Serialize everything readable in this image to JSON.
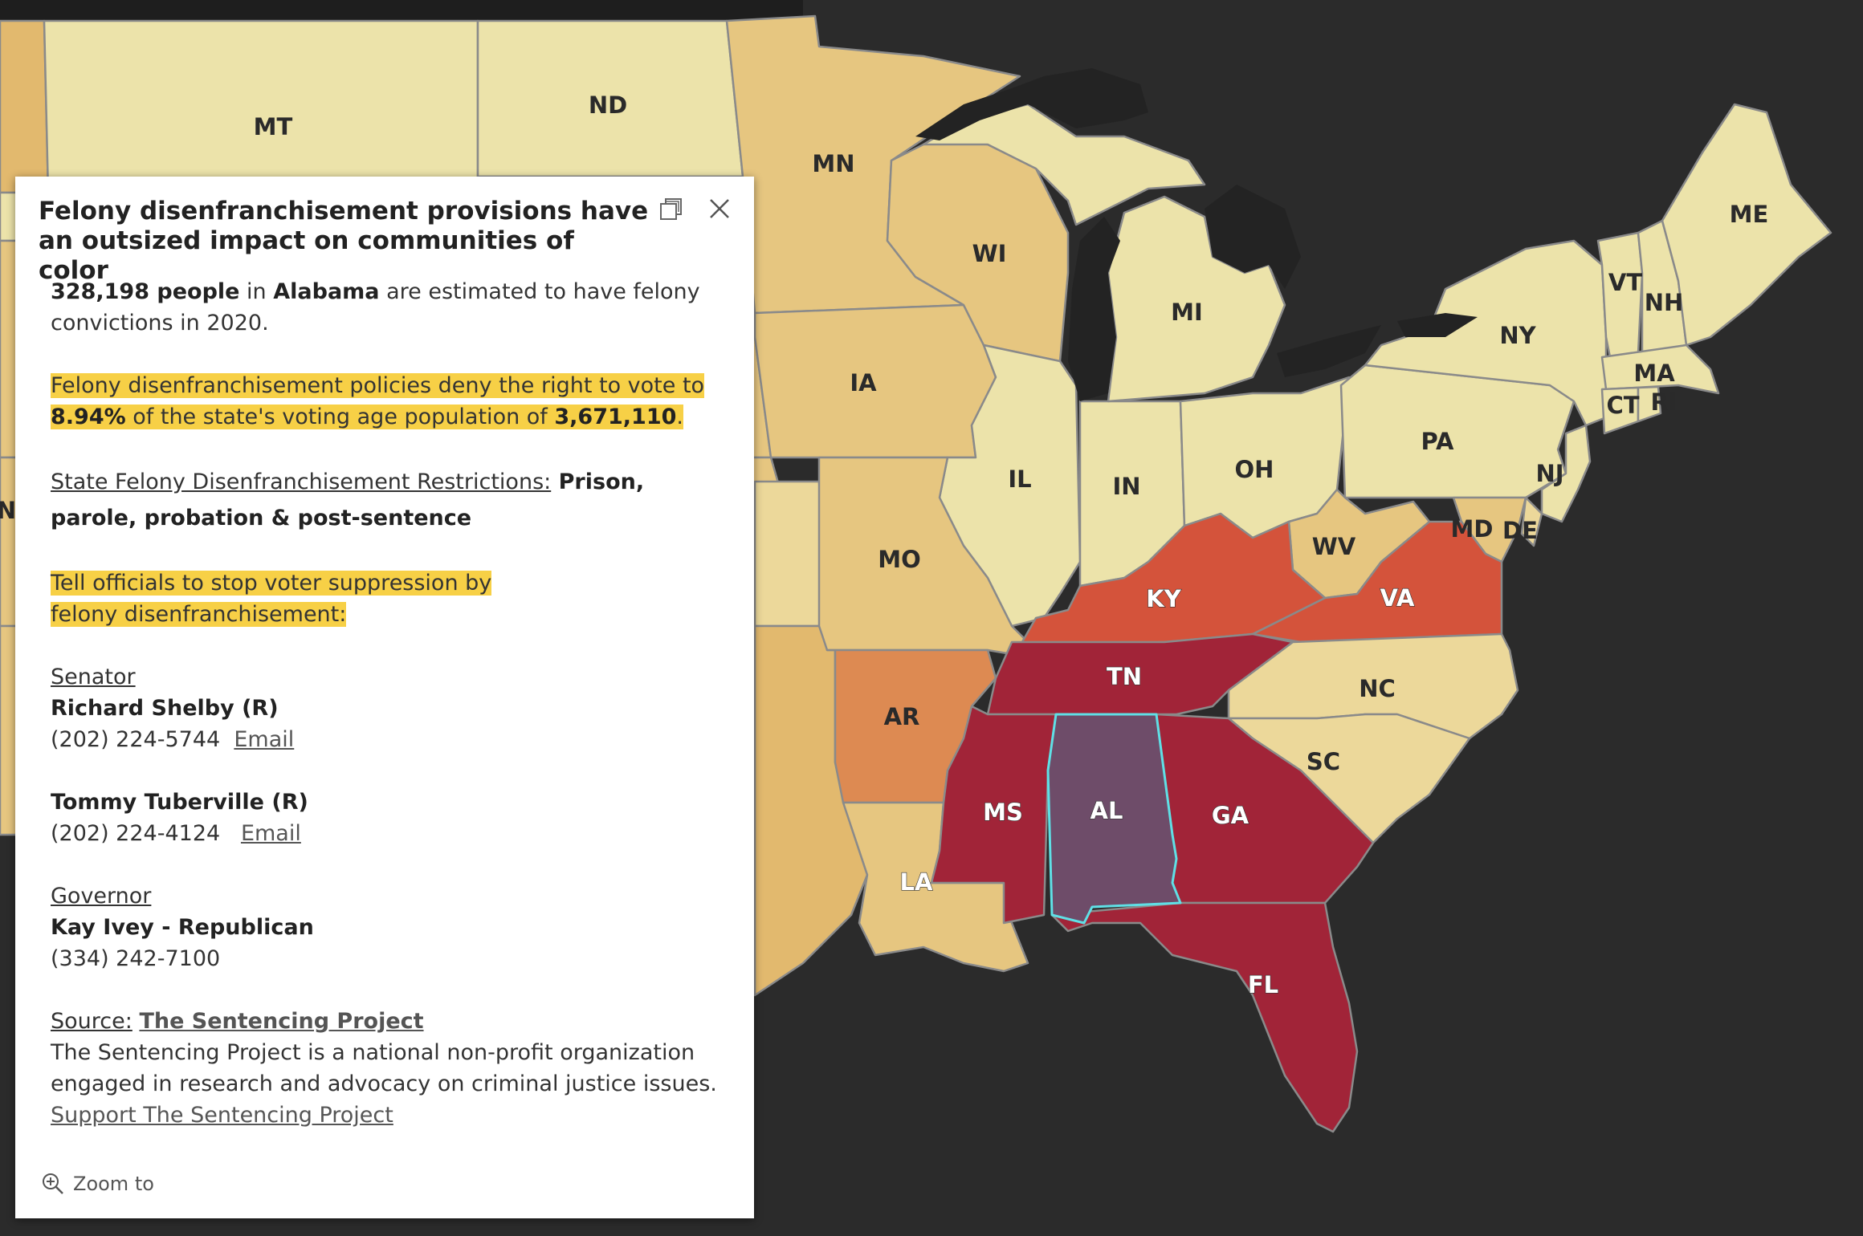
{
  "map": {
    "colors": {
      "water": "#2b2b2b",
      "lake": "#232323",
      "lightest": "#ece3aa",
      "light": "#ecd89a",
      "tan": "#e6c680",
      "mid": "#e2b96e",
      "orange": "#dd8a52",
      "red_orange": "#d4533b",
      "red": "#b02a3c",
      "crimson": "#a12438",
      "selected": "#6e4c69",
      "selected_outline": "#5fe0e6"
    },
    "state_labels": {
      "MT": "MT",
      "ND": "ND",
      "MN": "MN",
      "WI": "WI",
      "MI": "MI",
      "IA": "IA",
      "IL": "IL",
      "IN": "IN",
      "OH": "OH",
      "PA": "PA",
      "NY": "NY",
      "VT": "VT",
      "NH": "NH",
      "ME": "ME",
      "MA": "MA",
      "CT": "CT",
      "RI": "RI",
      "NJ": "NJ",
      "MD": "MD",
      "DE": "DE",
      "WV": "WV",
      "VA": "VA",
      "KY": "KY",
      "MO": "MO",
      "TN": "TN",
      "NC": "NC",
      "AR": "AR",
      "SC": "SC",
      "MS": "MS",
      "AL": "AL",
      "GA": "GA",
      "LA": "LA",
      "FL": "FL",
      "N": "N"
    }
  },
  "popup": {
    "title": "Felony disenfranchisement provisions have an outsized impact on communities of color",
    "maximize_icon": "maximize-icon",
    "close_icon": "close-icon",
    "line1": {
      "count": "328,198 people",
      "in": " in ",
      "state": "Alabama",
      "rest": " are estimated to have felony convictions in 2020."
    },
    "line2": {
      "pre": "Felony disenfranchisement policies deny the right to vote to ",
      "percent": "8.94%",
      "mid": " of the state's voting age population of ",
      "population": "3,671,110",
      "end": "."
    },
    "restrictions": {
      "label": "State Felony Disenfranchisement Restrictions:",
      "value": " Prison, parole, probation & post-sentence"
    },
    "call_to_action": "Tell officials to stop voter suppression by felony disenfranchisement:",
    "senator": {
      "heading": "Senator ",
      "s1_name": "Richard Shelby (R)",
      "s1_phone": "(202) 224-5744",
      "s1_email": "Email",
      "s2_name": "Tommy Tuberville (R)",
      "s2_phone": "(202) 224-4124",
      "s2_email": "Email "
    },
    "governor": {
      "heading": "Governor",
      "name": "Kay Ivey - Republican",
      "phone": "(334) 242-7100"
    },
    "source": {
      "label": "Source:",
      "org": "The Sentencing Project",
      "desc": "The Sentencing Project is a national non-profit organization engaged in research and advocacy on criminal justice issues. ",
      "support": "Support The Sentencing Project"
    },
    "zoom_icon": "zoom-in-icon",
    "zoom_label": "Zoom to"
  }
}
